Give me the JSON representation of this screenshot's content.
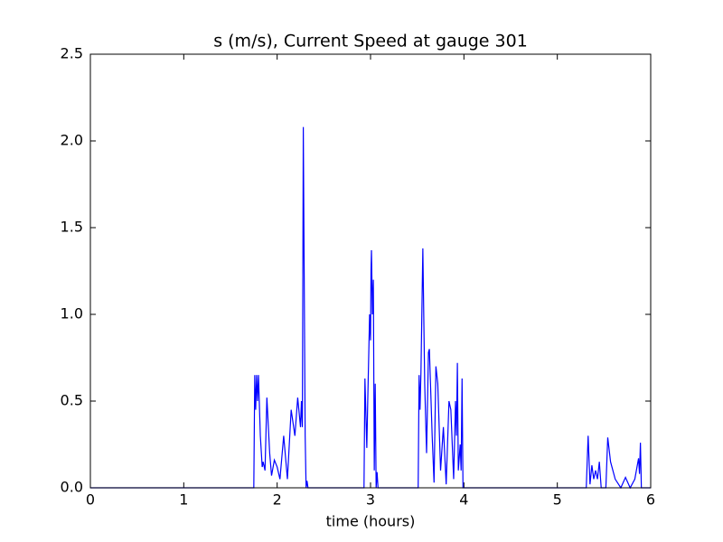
{
  "chart_data": {
    "type": "line",
    "title": "s (m/s), Current Speed at gauge 301",
    "xlabel": "time (hours)",
    "xlim": [
      0,
      6
    ],
    "ylim": [
      0,
      2.5
    ],
    "xticks": [
      0,
      1,
      2,
      3,
      4,
      5,
      6
    ],
    "yticks": [
      {
        "value": 0,
        "label": "0.0"
      },
      {
        "value": 0.5,
        "label": "0.5"
      },
      {
        "value": 1,
        "label": "1.0"
      },
      {
        "value": 1.5,
        "label": "1.5"
      },
      {
        "value": 2,
        "label": "2.0"
      },
      {
        "value": 2.5,
        "label": "2.5"
      }
    ],
    "series": [
      {
        "color": "#0000ff",
        "x": [
          0,
          1.75,
          1.76,
          1.77,
          1.78,
          1.79,
          1.8,
          1.82,
          1.84,
          1.85,
          1.87,
          1.89,
          1.92,
          1.94,
          1.97,
          2.0,
          2.03,
          2.07,
          2.11,
          2.15,
          2.19,
          2.22,
          2.25,
          2.26,
          2.27,
          2.28,
          2.3,
          2.31,
          2.32,
          2.33,
          2.93,
          2.94,
          2.96,
          2.97,
          2.99,
          3.0,
          3.005,
          3.01,
          3.02,
          3.03,
          3.04,
          3.05,
          3.06,
          3.07,
          3.08,
          3.51,
          3.52,
          3.53,
          3.54,
          3.56,
          3.58,
          3.6,
          3.62,
          3.63,
          3.66,
          3.68,
          3.7,
          3.72,
          3.75,
          3.78,
          3.81,
          3.84,
          3.86,
          3.89,
          3.91,
          3.92,
          3.93,
          3.94,
          3.96,
          3.97,
          3.98,
          3.99,
          5.31,
          5.33,
          5.35,
          5.37,
          5.39,
          5.41,
          5.43,
          5.45,
          5.47,
          5.52,
          5.54,
          5.57,
          5.62,
          5.68,
          5.73,
          5.78,
          5.83,
          5.87,
          5.88,
          5.89,
          5.9,
          6
        ],
        "values": [
          0,
          0,
          0.65,
          0.45,
          0.65,
          0.5,
          0.65,
          0.3,
          0.12,
          0.15,
          0.1,
          0.52,
          0.2,
          0.07,
          0.16,
          0.12,
          0.05,
          0.3,
          0.05,
          0.45,
          0.3,
          0.52,
          0.35,
          0.5,
          0.35,
          2.08,
          0.3,
          0,
          0.04,
          0,
          0,
          0.63,
          0.23,
          0.5,
          1,
          0.85,
          1.25,
          1.37,
          1,
          1.2,
          0.1,
          0.6,
          0,
          0.09,
          0,
          0,
          0.65,
          0.45,
          0.67,
          1.38,
          0.6,
          0.2,
          0.78,
          0.8,
          0.3,
          0.03,
          0.7,
          0.6,
          0.1,
          0.35,
          0.02,
          0.5,
          0.45,
          0.05,
          0.5,
          0.3,
          0.72,
          0.1,
          0.25,
          0.1,
          0.63,
          0,
          0,
          0.3,
          0.02,
          0.13,
          0.05,
          0.1,
          0.05,
          0.15,
          0,
          0,
          0.29,
          0.15,
          0.05,
          0,
          0.06,
          0,
          0.05,
          0.17,
          0.08,
          0.26,
          0,
          0
        ]
      }
    ]
  }
}
